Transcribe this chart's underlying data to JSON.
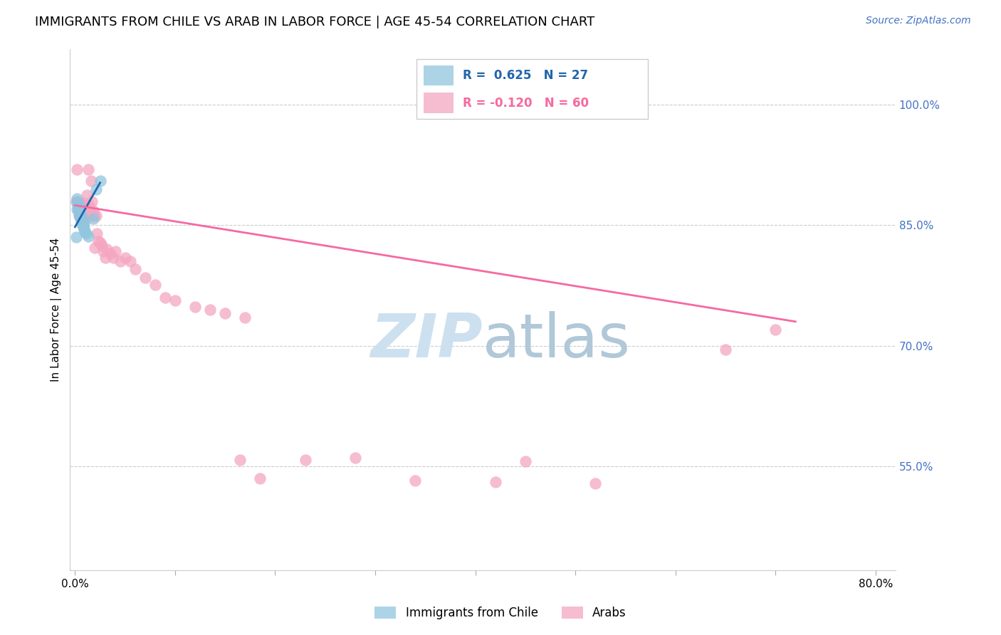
{
  "title": "IMMIGRANTS FROM CHILE VS ARAB IN LABOR FORCE | AGE 45-54 CORRELATION CHART",
  "source": "Source: ZipAtlas.com",
  "ylabel": "In Labor Force | Age 45-54",
  "xlim": [
    -0.005,
    0.82
  ],
  "ylim": [
    0.42,
    1.07
  ],
  "yticks_right": [
    0.55,
    0.7,
    0.85,
    1.0
  ],
  "ytick_labels_right": [
    "55.0%",
    "70.0%",
    "85.0%",
    "100.0%"
  ],
  "chile_R": 0.625,
  "chile_N": 27,
  "arab_R": -0.12,
  "arab_N": 60,
  "chile_color": "#92c5de",
  "arab_color": "#f4a6c0",
  "chile_line_color": "#2166ac",
  "arab_line_color": "#f768a1",
  "watermark_zip_color": "#cce0ef",
  "watermark_atlas_color": "#b0c8d8",
  "chile_x": [
    0.001,
    0.002,
    0.002,
    0.002,
    0.003,
    0.003,
    0.003,
    0.004,
    0.004,
    0.005,
    0.005,
    0.005,
    0.006,
    0.006,
    0.007,
    0.007,
    0.007,
    0.008,
    0.008,
    0.009,
    0.009,
    0.01,
    0.011,
    0.013,
    0.018,
    0.021,
    0.025
  ],
  "chile_y": [
    0.835,
    0.878,
    0.883,
    0.87,
    0.872,
    0.876,
    0.869,
    0.865,
    0.875,
    0.86,
    0.866,
    0.862,
    0.856,
    0.862,
    0.851,
    0.856,
    0.86,
    0.848,
    0.853,
    0.845,
    0.85,
    0.842,
    0.84,
    0.836,
    0.858,
    0.895,
    0.905
  ],
  "arab_x": [
    0.001,
    0.002,
    0.002,
    0.003,
    0.003,
    0.004,
    0.004,
    0.005,
    0.005,
    0.006,
    0.007,
    0.007,
    0.008,
    0.008,
    0.009,
    0.009,
    0.01,
    0.011,
    0.012,
    0.013,
    0.014,
    0.015,
    0.016,
    0.017,
    0.018,
    0.019,
    0.02,
    0.021,
    0.022,
    0.023,
    0.025,
    0.027,
    0.028,
    0.03,
    0.032,
    0.035,
    0.038,
    0.04,
    0.045,
    0.05,
    0.055,
    0.06,
    0.07,
    0.08,
    0.09,
    0.1,
    0.12,
    0.135,
    0.15,
    0.165,
    0.17,
    0.185,
    0.23,
    0.28,
    0.34,
    0.42,
    0.45,
    0.52,
    0.65,
    0.7
  ],
  "arab_y": [
    0.88,
    0.92,
    0.88,
    0.875,
    0.878,
    0.862,
    0.87,
    0.865,
    0.878,
    0.858,
    0.875,
    0.868,
    0.872,
    0.878,
    0.862,
    0.87,
    0.86,
    0.858,
    0.888,
    0.92,
    0.875,
    0.87,
    0.905,
    0.88,
    0.868,
    0.862,
    0.822,
    0.862,
    0.84,
    0.83,
    0.828,
    0.825,
    0.818,
    0.81,
    0.82,
    0.815,
    0.81,
    0.818,
    0.805,
    0.81,
    0.805,
    0.795,
    0.785,
    0.776,
    0.76,
    0.756,
    0.748,
    0.745,
    0.74,
    0.558,
    0.735,
    0.535,
    0.558,
    0.56,
    0.532,
    0.53,
    0.556,
    0.528,
    0.695,
    0.72
  ],
  "chile_line_x": [
    0.0,
    0.025
  ],
  "chile_line_y": [
    0.848,
    0.903
  ],
  "arab_line_x": [
    0.0,
    0.72
  ],
  "arab_line_y": [
    0.875,
    0.73
  ]
}
